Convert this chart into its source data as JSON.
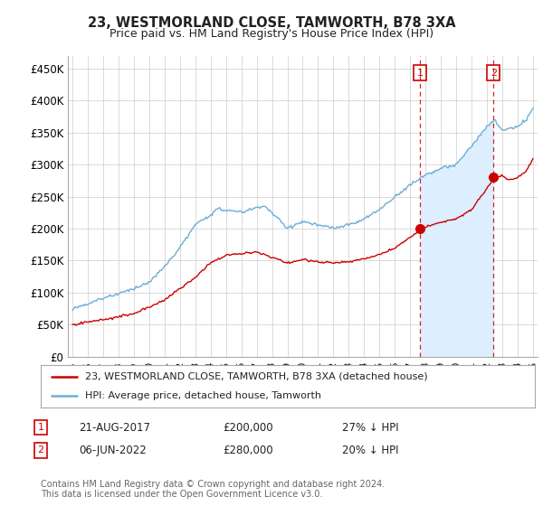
{
  "title": "23, WESTMORLAND CLOSE, TAMWORTH, B78 3XA",
  "subtitle": "Price paid vs. HM Land Registry's House Price Index (HPI)",
  "ylabel_ticks": [
    "£0",
    "£50K",
    "£100K",
    "£150K",
    "£200K",
    "£250K",
    "£300K",
    "£350K",
    "£400K",
    "£450K"
  ],
  "ytick_values": [
    0,
    50000,
    100000,
    150000,
    200000,
    250000,
    300000,
    350000,
    400000,
    450000
  ],
  "ylim": [
    0,
    470000
  ],
  "xlim_start": 1994.7,
  "xlim_end": 2025.3,
  "hpi_color": "#6baed6",
  "hpi_fill_color": "#ddeeff",
  "price_color": "#cc0000",
  "marker1_x": 2017.64,
  "marker1_y": 200000,
  "marker2_x": 2022.43,
  "marker2_y": 280000,
  "legend_label1": "23, WESTMORLAND CLOSE, TAMWORTH, B78 3XA (detached house)",
  "legend_label2": "HPI: Average price, detached house, Tamworth",
  "note1_num": "1",
  "note1_date": "21-AUG-2017",
  "note1_price": "£200,000",
  "note1_pct": "27% ↓ HPI",
  "note2_num": "2",
  "note2_date": "06-JUN-2022",
  "note2_price": "£280,000",
  "note2_pct": "20% ↓ HPI",
  "footer": "Contains HM Land Registry data © Crown copyright and database right 2024.\nThis data is licensed under the Open Government Licence v3.0.",
  "background_color": "#ffffff",
  "grid_color": "#cccccc"
}
